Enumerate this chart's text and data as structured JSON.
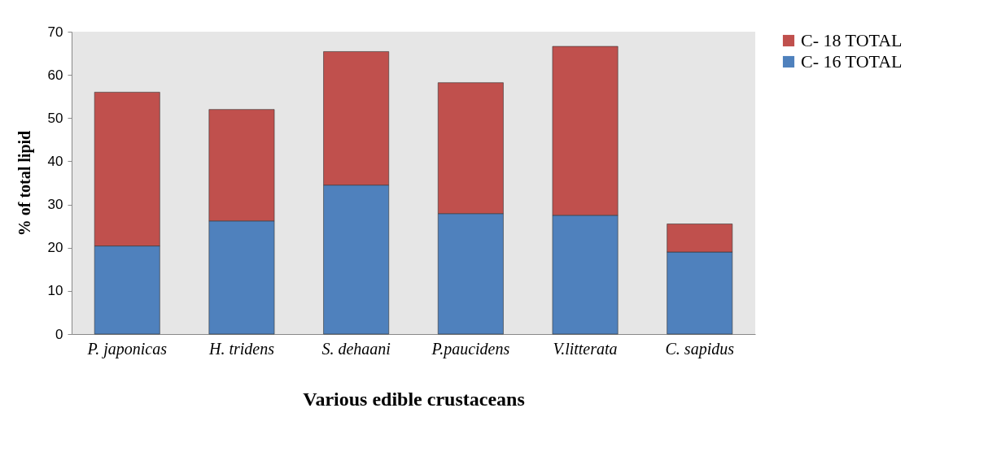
{
  "chart_data": {
    "type": "bar",
    "stacked": true,
    "xlabel": "Various edible crustaceans",
    "ylabel": "% of total lipid",
    "categories": [
      "P. japonicas",
      "H. tridens",
      "S. dehaani",
      "P.paucidens",
      "V.litterata",
      "C. sapidus"
    ],
    "series": [
      {
        "name": "C- 16 TOTAL",
        "color": "#4f81bd",
        "values": [
          20.4,
          26.2,
          34.5,
          27.9,
          27.5,
          19.0
        ]
      },
      {
        "name": "C- 18 TOTAL",
        "color": "#c0504d",
        "values": [
          35.6,
          25.8,
          30.9,
          30.3,
          39.1,
          6.5
        ]
      }
    ],
    "ylim": [
      0,
      70
    ],
    "yticks": [
      0,
      10,
      20,
      30,
      40,
      50,
      60,
      70
    ],
    "grid": false,
    "legend": "top right"
  }
}
